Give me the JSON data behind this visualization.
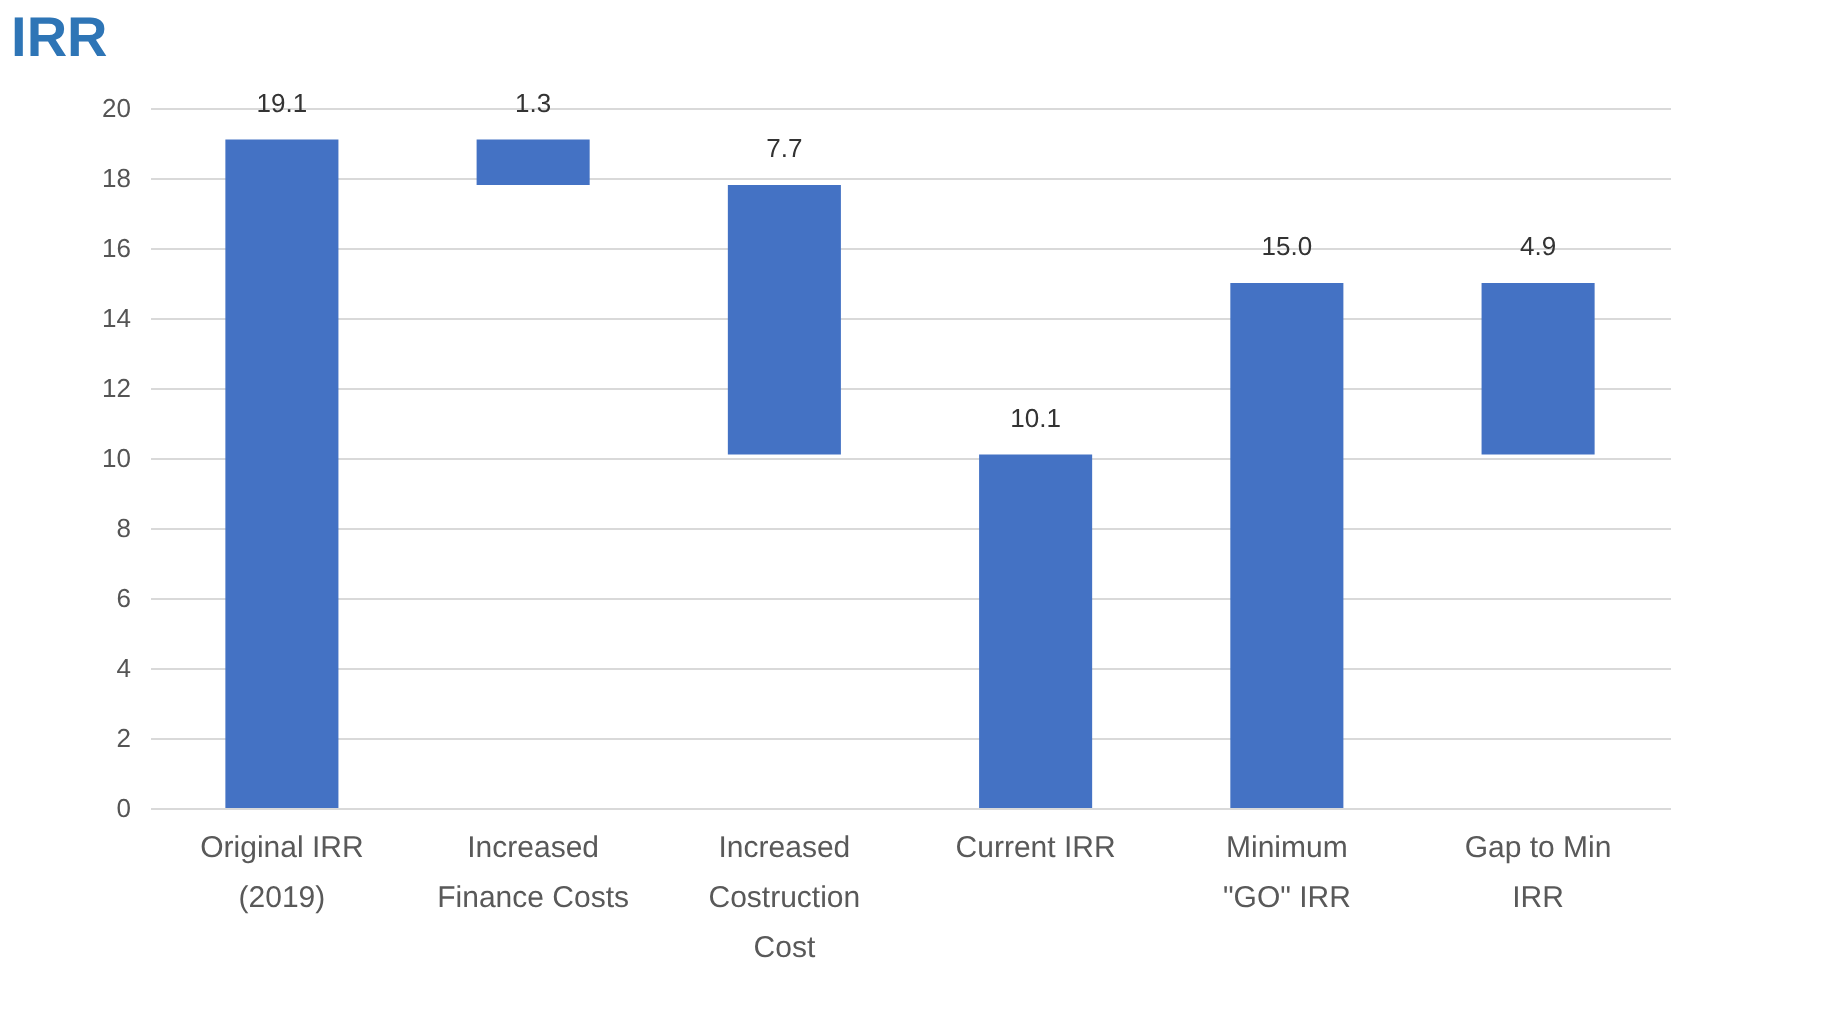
{
  "chart_data": {
    "type": "bar",
    "title": "IRR",
    "categories": [
      "Original IRR\n(2019)",
      "Increased\nFinance Costs",
      "Increased\nCostruction\nCost",
      "Current IRR",
      "Minimum\n\"GO\" IRR",
      "Gap to Min\nIRR"
    ],
    "values": [
      19.1,
      1.3,
      7.7,
      10.1,
      15.0,
      4.9
    ],
    "base": [
      0,
      17.8,
      10.1,
      0,
      0,
      10.1
    ],
    "value_labels": [
      "19.1",
      "1.3",
      "7.7",
      "10.1",
      "15.0",
      "4.9"
    ],
    "color": "#4472c4",
    "ylim": [
      0,
      20
    ],
    "yticks": [
      0,
      2,
      4,
      6,
      8,
      10,
      12,
      14,
      16,
      18,
      20
    ],
    "grid": "y"
  }
}
